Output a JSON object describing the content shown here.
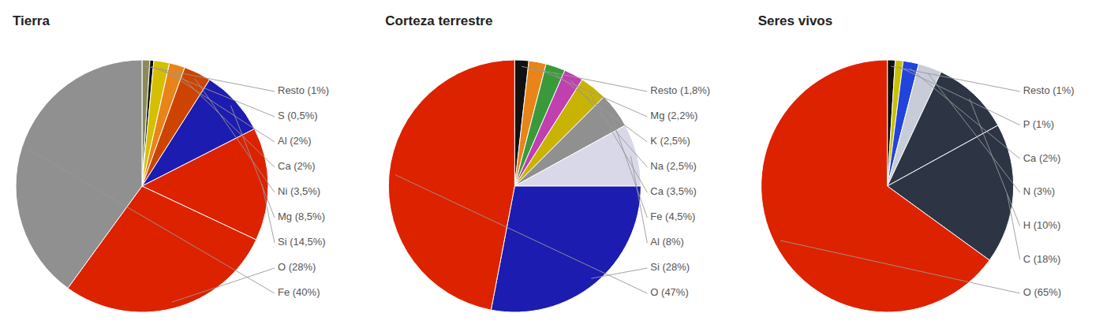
{
  "chart_data": [
    {
      "type": "pie",
      "title": "Tierra",
      "categories": [
        "Resto (1%)",
        "S (0,5%)",
        "Al (2%)",
        "Ca (2%)",
        "Ni (3,5%)",
        "Mg (8,5%)",
        "Si (14,5%)",
        "O (28%)",
        "Fe (40%)"
      ],
      "values": [
        1.0,
        0.5,
        2.0,
        2.0,
        3.5,
        8.5,
        14.5,
        28.0,
        40.0
      ],
      "colors": [
        "#8B8B5A",
        "#111111",
        "#d4c000",
        "#e8841a",
        "#cc4400",
        "#1c1cb0",
        "#dd2200",
        "#dd2200",
        "#909090"
      ]
    },
    {
      "type": "pie",
      "title": "Corteza terrestre",
      "categories": [
        "Resto (1,8%)",
        "Mg (2,2%)",
        "K (2,5%)",
        "Na (2,5%)",
        "Ca (3,5%)",
        "Fe (4,5%)",
        "Al (8%)",
        "Si (28%)",
        "O (47%)"
      ],
      "values": [
        1.8,
        2.2,
        2.5,
        2.5,
        3.5,
        4.5,
        8.0,
        28.0,
        47.0
      ],
      "colors": [
        "#111111",
        "#e8841a",
        "#3a9a3a",
        "#c040b0",
        "#c8b400",
        "#909090",
        "#d8d8e8",
        "#1c1cb0",
        "#dd2200"
      ]
    },
    {
      "type": "pie",
      "title": "Seres vivos",
      "categories": [
        "Resto (1%)",
        "P (1%)",
        "Ca (2%)",
        "N (3%)",
        "H (10%)",
        "C (18%)",
        "O (65%)"
      ],
      "values": [
        1.0,
        1.0,
        2.0,
        3.0,
        10.0,
        18.0,
        65.0
      ],
      "colors": [
        "#111111",
        "#c8c000",
        "#2244dd",
        "#c8ccd8",
        "#2d3545",
        "#2d3545",
        "#dd2200"
      ]
    }
  ]
}
